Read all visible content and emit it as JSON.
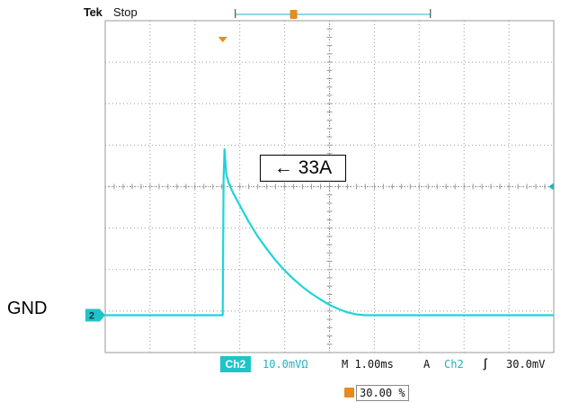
{
  "header": {
    "brand": "Tek",
    "acq_state": "Stop"
  },
  "labels": {
    "ground": "GND",
    "peak_annotation": "← 33A",
    "channel_marker": "2",
    "trigger_marker": "T"
  },
  "readouts": {
    "channel": "Ch2",
    "volts_per_div": "10.0mVΩ",
    "time_per_div": "M 1.00ms",
    "trigger_mode": "A",
    "trigger_channel": "Ch2",
    "trigger_slope_symbol": "∫",
    "trigger_level": "30.0mV",
    "trigger_position": "30.00 %"
  },
  "colors": {
    "trace": "#1fd3d9",
    "grid": "#9a9a9a",
    "trigger": "#e88a1c",
    "channel_badge": "#1fc4c9"
  },
  "chart_data": {
    "type": "line",
    "title": "",
    "xlabel": "",
    "ylabel": "",
    "x_unit": "div",
    "y_unit": "div",
    "xlim": [
      0,
      10
    ],
    "ylim": [
      -4,
      4
    ],
    "grid": true,
    "series": [
      {
        "x": [
          0,
          1.0,
          2.0,
          2.62,
          2.64,
          2.66,
          2.7,
          2.75,
          2.85,
          3.0,
          3.2,
          3.4,
          3.6,
          3.8,
          4.0,
          4.2,
          4.4,
          4.6,
          4.8,
          5.0,
          5.2,
          5.4,
          5.6,
          5.8,
          6.5,
          7.5,
          8.5,
          10.0
        ],
        "y": [
          -3.1,
          -3.1,
          -3.1,
          -3.1,
          0.2,
          0.9,
          0.3,
          0.1,
          -0.15,
          -0.45,
          -0.85,
          -1.2,
          -1.5,
          -1.78,
          -2.02,
          -2.23,
          -2.42,
          -2.58,
          -2.72,
          -2.85,
          -2.95,
          -3.03,
          -3.08,
          -3.1,
          -3.1,
          -3.1,
          -3.1,
          -3.1
        ]
      }
    ]
  }
}
